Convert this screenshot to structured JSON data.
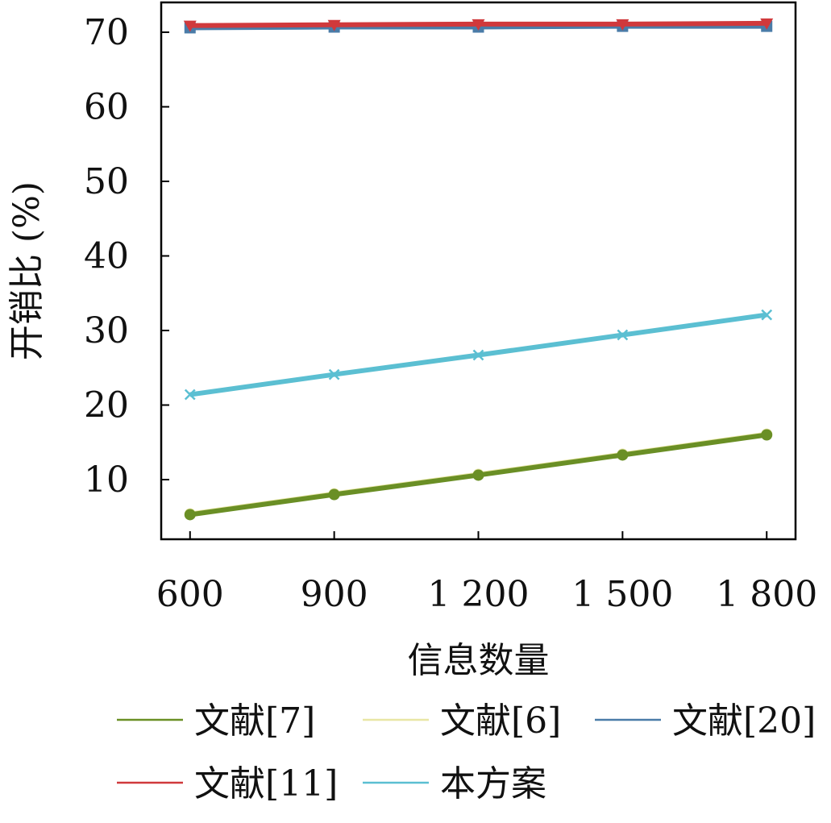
{
  "chart_data": {
    "type": "line",
    "xlabel": "信息数量",
    "ylabel": "开销比 (%)",
    "x": [
      600,
      900,
      1200,
      1500,
      1800
    ],
    "x_tick_labels": [
      "600",
      "900",
      "1 200",
      "1 500",
      "1 800"
    ],
    "ylim": [
      2,
      74
    ],
    "y_ticks": [
      10,
      20,
      30,
      40,
      50,
      60,
      70
    ],
    "grid": false,
    "legend_position": "bottom",
    "series": [
      {
        "name": "文献[7]",
        "color": "#6a8f25",
        "marker": "circle",
        "values": [
          5.3,
          8.0,
          10.6,
          13.3,
          16.0
        ]
      },
      {
        "name": "文献[6]",
        "color": "#e8e6a4",
        "marker": "circle",
        "values": [
          5.4,
          8.1,
          10.7,
          13.4,
          16.1
        ]
      },
      {
        "name": "文献[20]",
        "color": "#4a7ca8",
        "marker": "square",
        "values": [
          70.6,
          70.7,
          70.7,
          70.8,
          70.8
        ]
      },
      {
        "name": "文献[11]",
        "color": "#d0393c",
        "marker": "triangle-down",
        "values": [
          70.9,
          71.0,
          71.1,
          71.1,
          71.2
        ]
      },
      {
        "name": "本方案",
        "color": "#5bbfd2",
        "marker": "x",
        "values": [
          21.4,
          24.1,
          26.7,
          29.4,
          32.1
        ]
      }
    ]
  }
}
